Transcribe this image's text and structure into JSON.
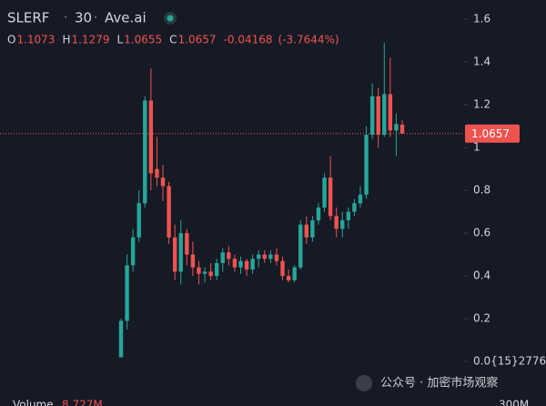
{
  "chart_data": {
    "type": "candlestick",
    "header": {
      "symbol": "SLERF",
      "interval": "30",
      "source": "Ave.ai",
      "ohlc": [
        {
          "key": "O",
          "value": "1.1073"
        },
        {
          "key": "H",
          "value": "1.1279"
        },
        {
          "key": "L",
          "value": "1.0655"
        },
        {
          "key": "C",
          "value": "1.0657"
        }
      ],
      "change": "-0.04168",
      "change_pct": "(-3.7644%)"
    },
    "open": [
      0.02,
      0.19,
      0.45,
      0.58,
      0.74,
      1.22,
      0.9,
      0.86,
      0.82,
      0.58,
      0.42,
      0.6,
      0.5,
      0.44,
      0.41,
      0.42,
      0.4,
      0.46,
      0.51,
      0.48,
      0.44,
      0.47,
      0.43,
      0.48,
      0.5,
      0.48,
      0.5,
      0.47,
      0.4,
      0.38,
      0.44,
      0.64,
      0.58,
      0.66,
      0.72,
      0.86,
      0.68,
      0.62,
      0.66,
      0.7,
      0.74,
      0.78,
      1.06,
      1.24,
      1.06,
      1.25,
      1.08,
      1.1073
    ],
    "high": [
      0.2,
      0.5,
      0.62,
      0.8,
      1.24,
      1.37,
      1.05,
      0.92,
      0.84,
      0.64,
      0.66,
      0.62,
      0.56,
      0.47,
      0.44,
      0.46,
      0.48,
      0.53,
      0.54,
      0.5,
      0.49,
      0.48,
      0.5,
      0.52,
      0.52,
      0.52,
      0.53,
      0.49,
      0.43,
      0.45,
      0.66,
      0.68,
      0.68,
      0.74,
      0.88,
      0.96,
      0.72,
      0.7,
      0.72,
      0.76,
      0.82,
      1.1,
      1.3,
      1.28,
      1.49,
      1.42,
      1.16,
      1.1279
    ],
    "low": [
      0.02,
      0.15,
      0.42,
      0.56,
      0.72,
      0.8,
      0.82,
      0.75,
      0.55,
      0.38,
      0.36,
      0.45,
      0.4,
      0.36,
      0.37,
      0.38,
      0.38,
      0.42,
      0.45,
      0.42,
      0.41,
      0.4,
      0.41,
      0.44,
      0.46,
      0.46,
      0.45,
      0.38,
      0.37,
      0.37,
      0.43,
      0.55,
      0.56,
      0.64,
      0.7,
      0.66,
      0.58,
      0.58,
      0.62,
      0.68,
      0.72,
      0.76,
      1.04,
      1.0,
      1.05,
      1.05,
      0.96,
      1.0655
    ],
    "close": [
      0.19,
      0.45,
      0.58,
      0.74,
      1.22,
      0.88,
      0.86,
      0.82,
      0.58,
      0.42,
      0.6,
      0.5,
      0.44,
      0.41,
      0.42,
      0.4,
      0.46,
      0.51,
      0.48,
      0.44,
      0.47,
      0.43,
      0.48,
      0.5,
      0.48,
      0.5,
      0.47,
      0.4,
      0.38,
      0.44,
      0.64,
      0.58,
      0.66,
      0.72,
      0.86,
      0.68,
      0.62,
      0.66,
      0.7,
      0.74,
      0.78,
      1.06,
      1.24,
      1.06,
      1.25,
      1.08,
      1.11,
      1.0657
    ],
    "up_color": "#26a69a",
    "down_color": "#ef5350",
    "ylim": [
      -0.14,
      1.69
    ],
    "yticks": [
      {
        "value": 2.776e-16,
        "label": "0.0{15}2776"
      },
      0.2,
      0.4,
      0.6,
      0.8,
      1,
      1.2,
      1.4,
      1.6
    ],
    "last_price": 1.0657,
    "volume": {
      "label": "Volume",
      "value": "8.727M",
      "axis_label": "300M"
    },
    "watermark": "公众号 · 加密市场观察"
  }
}
